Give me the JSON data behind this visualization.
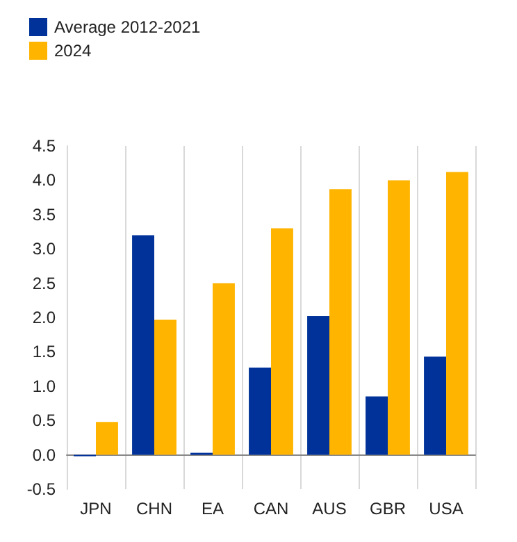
{
  "chart_data": {
    "type": "bar",
    "categories": [
      "JPN",
      "CHN",
      "EA",
      "CAN",
      "AUS",
      "GBR",
      "USA"
    ],
    "series": [
      {
        "name": "Average 2012-2021",
        "color": "#003299",
        "values": [
          -0.02,
          3.2,
          0.03,
          1.27,
          2.02,
          0.85,
          1.43
        ]
      },
      {
        "name": "2024",
        "color": "#ffb400",
        "values": [
          0.48,
          1.97,
          2.5,
          3.3,
          3.87,
          4.0,
          4.12
        ]
      }
    ],
    "ylim": [
      -0.5,
      4.5
    ],
    "yticks": [
      {
        "value": -0.5,
        "label": "-0.5"
      },
      {
        "value": 0,
        "label": "0.0"
      },
      {
        "value": 0.5,
        "label": "0.5"
      },
      {
        "value": 1,
        "label": "1.0"
      },
      {
        "value": 1.5,
        "label": "1.5"
      },
      {
        "value": 2,
        "label": "2.0"
      },
      {
        "value": 2.5,
        "label": "2.5"
      },
      {
        "value": 3,
        "label": "3.0"
      },
      {
        "value": 3.5,
        "label": "3.5"
      },
      {
        "value": 4,
        "label": "4.0"
      },
      {
        "value": 4.5,
        "label": "4.5"
      }
    ],
    "grid": "x",
    "legend": "top left"
  }
}
